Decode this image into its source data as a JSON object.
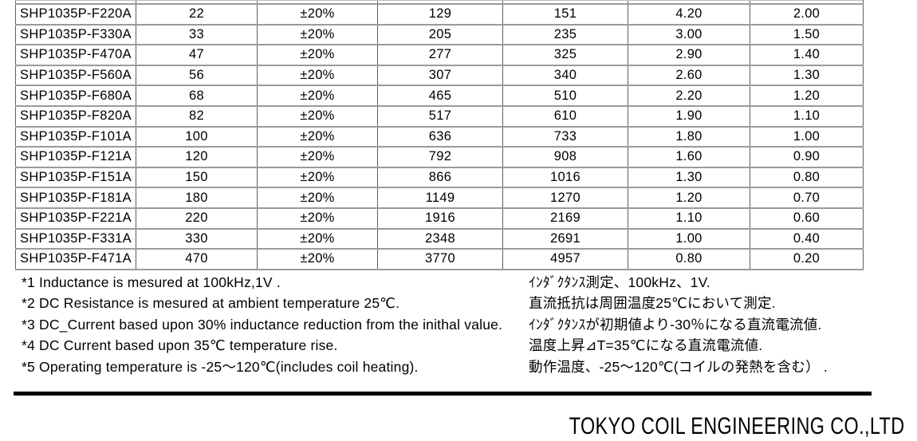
{
  "table": {
    "rows": [
      [
        "SHP1035P-F220A",
        "22",
        "±20%",
        "129",
        "151",
        "4.20",
        "2.00"
      ],
      [
        "SHP1035P-F330A",
        "33",
        "±20%",
        "205",
        "235",
        "3.00",
        "1.50"
      ],
      [
        "SHP1035P-F470A",
        "47",
        "±20%",
        "277",
        "325",
        "2.90",
        "1.40"
      ],
      [
        "SHP1035P-F560A",
        "56",
        "±20%",
        "307",
        "340",
        "2.60",
        "1.30"
      ],
      [
        "SHP1035P-F680A",
        "68",
        "±20%",
        "465",
        "510",
        "2.20",
        "1.20"
      ],
      [
        "SHP1035P-F820A",
        "82",
        "±20%",
        "517",
        "610",
        "1.90",
        "1.10"
      ],
      [
        "SHP1035P-F101A",
        "100",
        "±20%",
        "636",
        "733",
        "1.80",
        "1.00"
      ],
      [
        "SHP1035P-F121A",
        "120",
        "±20%",
        "792",
        "908",
        "1.60",
        "0.90"
      ],
      [
        "SHP1035P-F151A",
        "150",
        "±20%",
        "866",
        "1016",
        "1.30",
        "0.80"
      ],
      [
        "SHP1035P-F181A",
        "180",
        "±20%",
        "1149",
        "1270",
        "1.20",
        "0.70"
      ],
      [
        "SHP1035P-F221A",
        "220",
        "±20%",
        "1916",
        "2169",
        "1.10",
        "0.60"
      ],
      [
        "SHP1035P-F331A",
        "330",
        "±20%",
        "2348",
        "2691",
        "1.00",
        "0.40"
      ],
      [
        "SHP1035P-F471A",
        "470",
        "±20%",
        "3770",
        "4957",
        "0.80",
        "0.20"
      ]
    ]
  },
  "notes": [
    {
      "en": "*1 Inductance is mesured at 100kHz,1V .",
      "jp": "ｲﾝﾀﾞｸﾀﾝｽ測定、100kHz、1V."
    },
    {
      "en": "*2 DC Resistance is mesured at ambient temperature 25℃.",
      "jp": "直流抵抗は周囲温度25℃において測定."
    },
    {
      "en": "*3 DC_Current based upon 30% inductance reduction from the inithal value.",
      "jp": "ｲﾝﾀﾞｸﾀﾝｽが初期値より-30％になる直流電流値."
    },
    {
      "en": "*4 DC Current based upon 35℃ temperature rise.",
      "jp": "温度上昇⊿T=35℃になる直流電流値."
    },
    {
      "en": "*5 Operating temperature is -25～120℃(includes coil heating).",
      "jp": "動作温度、-25～120℃(コイルの発熱を含む） ."
    }
  ],
  "footer": {
    "company": "TOKYO COIL ENGINEERING CO.,LTD"
  },
  "colors": {
    "border_horizontal": "#9a9a9a",
    "border_vertical": "#5e5e5e",
    "text": "#000000",
    "footer_rule": "#000000"
  }
}
